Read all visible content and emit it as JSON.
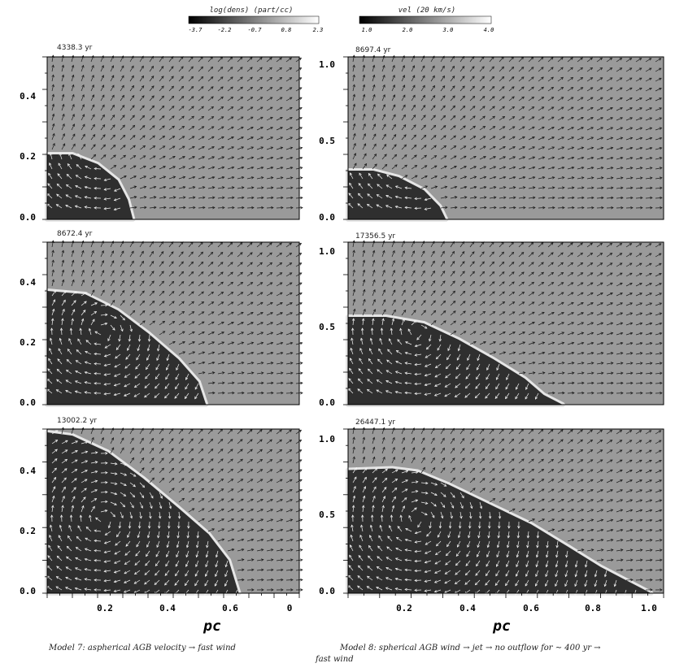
{
  "colorbars": [
    {
      "label": "log(dens) (part/cc)",
      "ticks": [
        "-3.7",
        "-2.2",
        "-0.7",
        "0.8",
        "2.3"
      ]
    },
    {
      "label": "vel (20 km/s)",
      "ticks": [
        "1.0",
        "2.0",
        "3.0",
        "4.0"
      ]
    }
  ],
  "colors": {
    "background_gas": "#9a9a9a",
    "bubble": "#2f2f2f",
    "shell": "#e6e6e6",
    "arrow_outside": "#1a1a1a",
    "arrow_inside": "#f2f2f2"
  },
  "panels": [
    {
      "column": "left",
      "row": 0,
      "time": "4338.3 yr",
      "yticks": [
        "0.0",
        "0.2",
        "0.4"
      ]
    },
    {
      "column": "right",
      "row": 0,
      "time": "8697.4 yr",
      "yticks": [
        "0.0",
        "0.5",
        "1.0"
      ]
    },
    {
      "column": "left",
      "row": 1,
      "time": "8672.4 yr",
      "yticks": [
        "0.0",
        "0.2",
        "0.4"
      ]
    },
    {
      "column": "right",
      "row": 1,
      "time": "17356.5 yr",
      "yticks": [
        "0.0",
        "0.5",
        "1.0"
      ]
    },
    {
      "column": "left",
      "row": 2,
      "time": "13002.2 yr",
      "yticks": [
        "0.0",
        "0.2",
        "0.4"
      ]
    },
    {
      "column": "right",
      "row": 2,
      "time": "26447.1 yr",
      "yticks": [
        "0.0",
        "0.5",
        "1.0"
      ]
    }
  ],
  "x_axes": {
    "left": {
      "ticks": [
        "0.2",
        "0.4",
        "0.6",
        "0"
      ],
      "label": "pc"
    },
    "right": {
      "ticks": [
        "0.2",
        "0.4",
        "0.6",
        "0.8",
        "1.0"
      ],
      "label": "pc"
    }
  },
  "captions": {
    "left": "Model 7: aspherical AGB velocity → fast wind",
    "right_line1": "Model 8: spherical AGB wind → jet → no outflow for ∼ 400 yr →",
    "right_line2": "fast wind"
  }
}
